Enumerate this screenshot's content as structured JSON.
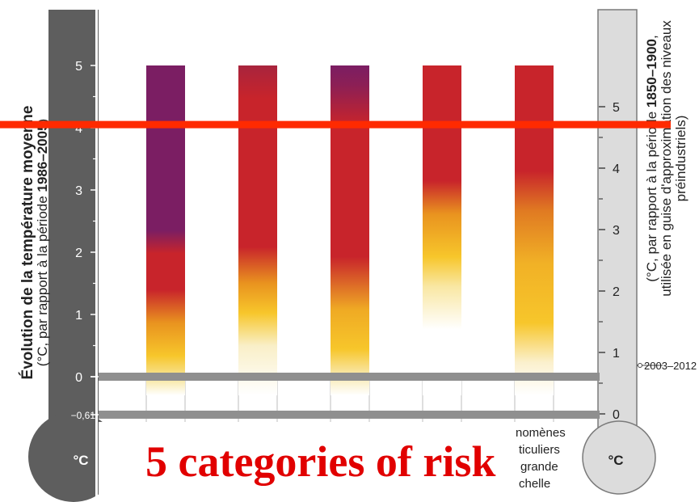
{
  "chart_data": {
    "type": "bar",
    "left_axis": {
      "title": "Évolution de la température moyenne",
      "subtitle_prefix": "(°C, par rapport à la période ",
      "subtitle_bold": "1986–2005",
      "subtitle_suffix": ")",
      "ticks": [
        "5",
        "4",
        "3",
        "2",
        "1",
        "0"
      ],
      "extra_tick": "−0,61",
      "unit": "°C",
      "range": [
        -0.61,
        5.6
      ]
    },
    "right_axis": {
      "line1_prefix": "(°C, par rapport à la période ",
      "line1_bold": "1850–1900",
      "line1_suffix": ",",
      "line2": "utilisée en guise d'approximation des niveaux",
      "line3": "préindustriels)",
      "ticks": [
        "5",
        "4",
        "3",
        "2",
        "1",
        "0"
      ],
      "marker_label": "2003–2012",
      "unit": "°C"
    },
    "categories": [
      "",
      "",
      "",
      "",
      ""
    ],
    "series": [
      {
        "values": [
          5,
          5,
          5,
          5,
          5
        ]
      }
    ],
    "bar_bottom": -0.3,
    "colors": {
      "purple": "#7b1e63",
      "red": "#c8242b",
      "yellow": "#f7c62b",
      "white": "#ffffff",
      "axis_gray": "#5e5e5e",
      "light_gray": "#dcdcdc",
      "overlay_red": "#ff2a00"
    },
    "overlay_line_value": 4.05,
    "band_lines": [
      0,
      -0.61
    ]
  },
  "overlay": {
    "title": "5 categories of risk"
  },
  "fragment": {
    "l1": "nomènes",
    "l2": "ticuliers",
    "l3": "grande",
    "l4": "chelle"
  }
}
